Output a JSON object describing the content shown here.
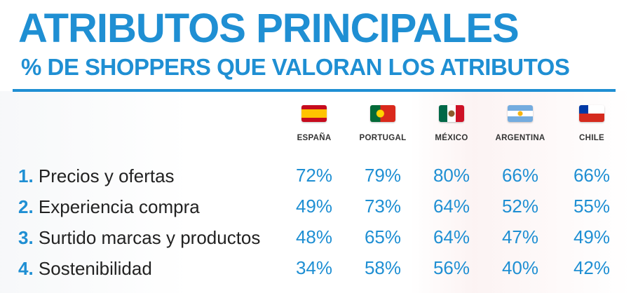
{
  "title": "ATRIBUTOS PRINCIPALES",
  "subtitle": "% DE SHOPPERS QUE VALORAN LOS ATRIBUTOS",
  "columns": [
    {
      "name": "ESPAÑA",
      "flag": "spain-flag-icon"
    },
    {
      "name": "PORTUGAL",
      "flag": "portugal-flag-icon"
    },
    {
      "name": "MÉXICO",
      "flag": "mexico-flag-icon"
    },
    {
      "name": "ARGENTINA",
      "flag": "argentina-flag-icon"
    },
    {
      "name": "CHILE",
      "flag": "chile-flag-icon"
    }
  ],
  "rows": [
    {
      "num": "1.",
      "label": "Precios y ofertas",
      "values": [
        "72%",
        "79%",
        "80%",
        "66%",
        "66%"
      ]
    },
    {
      "num": "2.",
      "label": "Experiencia compra",
      "values": [
        "49%",
        "73%",
        "64%",
        "52%",
        "55%"
      ]
    },
    {
      "num": "3.",
      "label": "Surtido marcas y productos",
      "values": [
        "48%",
        "65%",
        "64%",
        "47%",
        "49%"
      ]
    },
    {
      "num": "4.",
      "label": "Sostenibilidad",
      "values": [
        "34%",
        "58%",
        "56%",
        "40%",
        "42%"
      ]
    }
  ],
  "colors": {
    "accent": "#1f8fd3",
    "text": "#222222"
  },
  "chart_data": {
    "type": "table",
    "title": "ATRIBUTOS PRINCIPALES",
    "subtitle": "% DE SHOPPERS QUE VALORAN LOS ATRIBUTOS",
    "categories": [
      "ESPAÑA",
      "PORTUGAL",
      "MÉXICO",
      "ARGENTINA",
      "CHILE"
    ],
    "series": [
      {
        "name": "Precios y ofertas",
        "values": [
          72,
          79,
          80,
          66,
          66
        ]
      },
      {
        "name": "Experiencia compra",
        "values": [
          49,
          73,
          64,
          52,
          55
        ]
      },
      {
        "name": "Surtido marcas y productos",
        "values": [
          48,
          65,
          64,
          47,
          49
        ]
      },
      {
        "name": "Sostenibilidad",
        "values": [
          34,
          58,
          56,
          40,
          42
        ]
      }
    ]
  }
}
